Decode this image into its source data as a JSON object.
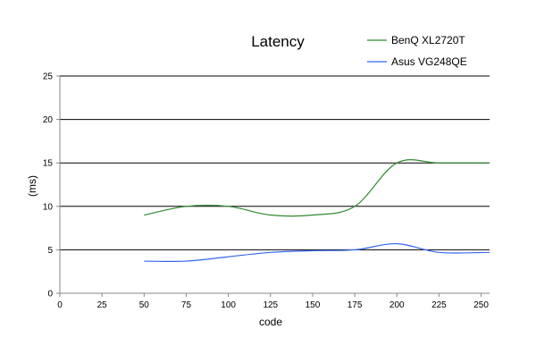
{
  "chart_data": {
    "type": "line",
    "title": "Latency",
    "xlabel": "code",
    "ylabel": "(ms)",
    "xlim": [
      0,
      255
    ],
    "ylim": [
      0,
      25
    ],
    "x_ticks": [
      0,
      25,
      50,
      75,
      100,
      125,
      150,
      175,
      200,
      225,
      250
    ],
    "y_ticks": [
      0,
      5,
      10,
      15,
      20,
      25
    ],
    "grid": "horizontal",
    "legend_position": "top-right",
    "series": [
      {
        "name": "BenQ XL2720T",
        "color": "#2e8b2e",
        "x": [
          50,
          75,
          100,
          125,
          150,
          175,
          200,
          225,
          255
        ],
        "y": [
          9.0,
          10.0,
          10.0,
          9.0,
          9.0,
          10.0,
          15.0,
          15.0,
          15.0
        ]
      },
      {
        "name": "Asus VG248QE",
        "color": "#3366ee",
        "x": [
          50,
          75,
          100,
          125,
          150,
          175,
          200,
          225,
          255
        ],
        "y": [
          3.7,
          3.7,
          4.2,
          4.7,
          4.9,
          5.0,
          5.7,
          4.7,
          4.7
        ]
      }
    ]
  }
}
